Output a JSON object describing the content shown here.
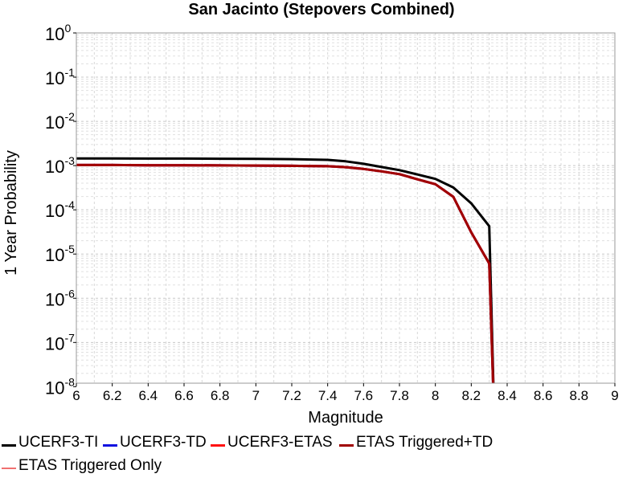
{
  "chart_data": {
    "type": "line",
    "title": "San Jacinto (Stepovers Combined)",
    "xlabel": "Magnitude",
    "ylabel": "1 Year Probability",
    "xlim": [
      6,
      9
    ],
    "ylim": [
      1.2e-08,
      1
    ],
    "y_scale": "log",
    "x_ticks": [
      "6",
      "6.2",
      "6.4",
      "6.6",
      "6.8",
      "7",
      "7.2",
      "7.4",
      "7.6",
      "7.8",
      "8",
      "8.2",
      "8.4",
      "8.6",
      "8.8",
      "9"
    ],
    "y_ticks": [
      {
        "base": "10",
        "exp": "0",
        "value": 1
      },
      {
        "base": "10",
        "exp": "-1",
        "value": 0.1
      },
      {
        "base": "10",
        "exp": "-2",
        "value": 0.01
      },
      {
        "base": "10",
        "exp": "-3",
        "value": 0.001
      },
      {
        "base": "10",
        "exp": "-4",
        "value": 0.0001
      },
      {
        "base": "10",
        "exp": "-5",
        "value": 1e-05
      },
      {
        "base": "10",
        "exp": "-6",
        "value": 1e-06
      },
      {
        "base": "10",
        "exp": "-7",
        "value": 1e-07
      },
      {
        "base": "10",
        "exp": "-8",
        "value": 1e-08
      }
    ],
    "grid": true,
    "legend_position": "bottom",
    "series": [
      {
        "name": "UCERF3-TI",
        "color": "#000000",
        "width": 3,
        "x": [
          6.0,
          6.2,
          6.4,
          6.6,
          6.8,
          7.0,
          7.2,
          7.4,
          7.5,
          7.6,
          7.7,
          7.8,
          7.9,
          8.0,
          8.1,
          8.2,
          8.3,
          8.33
        ],
        "y": [
          0.00145,
          0.00145,
          0.00144,
          0.00144,
          0.00143,
          0.00142,
          0.0014,
          0.00135,
          0.00125,
          0.0011,
          0.00093,
          0.00079,
          0.00063,
          0.0005,
          0.00032,
          0.00014,
          4.25e-05,
          1e-09
        ]
      },
      {
        "name": "UCERF3-TD",
        "color": "#1010e0",
        "width": 3,
        "x": [
          6.0,
          6.2,
          6.4,
          6.6,
          6.8,
          7.0,
          7.2,
          7.4,
          7.5,
          7.6,
          7.7,
          7.8,
          7.9,
          8.0,
          8.1,
          8.2,
          8.3,
          8.33
        ],
        "y": [
          0.00103,
          0.00103,
          0.00102,
          0.00102,
          0.00101,
          0.001,
          0.00099,
          0.00097,
          0.00092,
          0.00084,
          0.00074,
          0.00064,
          0.00049,
          0.00038,
          0.000197,
          3.1e-05,
          6.1e-06,
          1e-09
        ]
      },
      {
        "name": "UCERF3-ETAS",
        "color": "#ff1010",
        "width": 3,
        "x": [
          6.0,
          6.2,
          6.4,
          6.6,
          6.8,
          7.0,
          7.2,
          7.4,
          7.5,
          7.6,
          7.7,
          7.8,
          7.9,
          8.0,
          8.1,
          8.2,
          8.3,
          8.33
        ],
        "y": [
          0.00103,
          0.00103,
          0.00102,
          0.00102,
          0.00101,
          0.001,
          0.00099,
          0.00097,
          0.00092,
          0.00084,
          0.00074,
          0.00064,
          0.00049,
          0.00038,
          0.000197,
          3.1e-05,
          6.1e-06,
          1e-09
        ]
      },
      {
        "name": "ETAS Triggered+TD",
        "color": "#a00000",
        "width": 3,
        "x": [
          6.0,
          6.2,
          6.4,
          6.6,
          6.8,
          7.0,
          7.2,
          7.4,
          7.5,
          7.6,
          7.7,
          7.8,
          7.9,
          8.0,
          8.1,
          8.2,
          8.3,
          8.33
        ],
        "y": [
          0.00103,
          0.00103,
          0.00102,
          0.00102,
          0.00101,
          0.001,
          0.00099,
          0.00097,
          0.00092,
          0.00084,
          0.00074,
          0.00064,
          0.00049,
          0.00038,
          0.000197,
          3.1e-05,
          6.1e-06,
          1e-09
        ]
      },
      {
        "name": "ETAS Triggered Only",
        "color": "#f07070",
        "width": 1.5,
        "x": [],
        "y": []
      }
    ]
  }
}
